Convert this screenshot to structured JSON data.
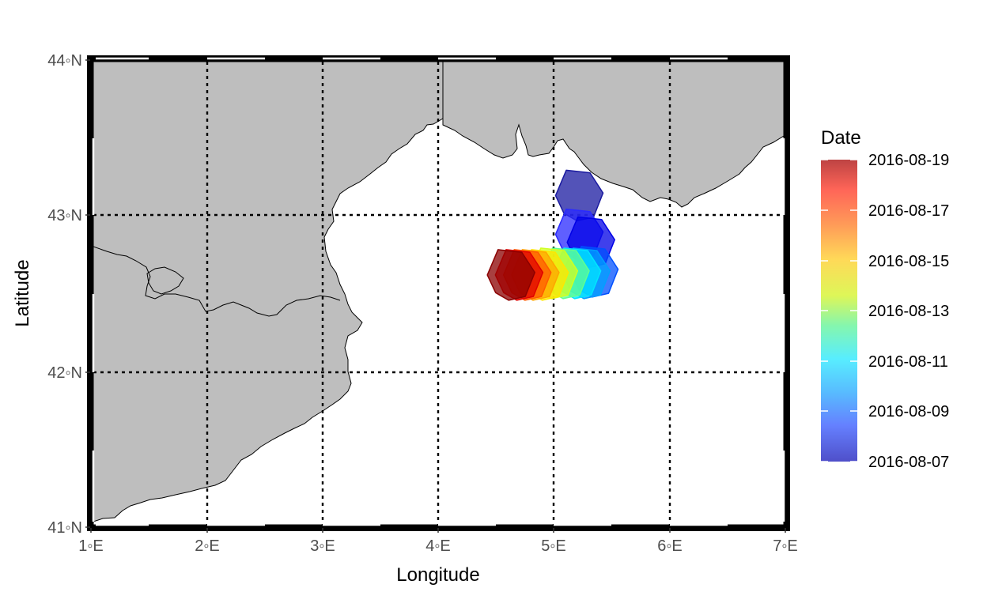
{
  "map": {
    "xlabel": "Longitude",
    "ylabel": "Latitude",
    "x_ticks": [
      "1◦E",
      "2◦E",
      "3◦E",
      "4◦E",
      "5◦E",
      "6◦E",
      "7◦E"
    ],
    "y_ticks": [
      "41◦N",
      "42◦N",
      "43◦N",
      "44◦N"
    ],
    "lon_range": [
      1,
      7
    ],
    "lat_range": [
      41,
      44
    ],
    "grid_lon": [
      2,
      3,
      4,
      5,
      6
    ],
    "grid_lat": [
      42,
      43
    ],
    "land_color": "#bebebe",
    "sea_color": "#ffffff",
    "grid_style": "dotted"
  },
  "legend": {
    "title": "Date",
    "placement": "right",
    "labels": [
      "2016-08-19",
      "2016-08-17",
      "2016-08-15",
      "2016-08-13",
      "2016-08-11",
      "2016-08-09",
      "2016-08-07"
    ],
    "colors_top_to_bottom": [
      "#b22222",
      "#ff4500",
      "#ffa500",
      "#ffff00",
      "#7fff7f",
      "#00ffff",
      "#1e90ff",
      "#0000ff",
      "#00008b"
    ]
  },
  "chart_data": {
    "type": "map",
    "xlabel": "Longitude",
    "ylabel": "Latitude",
    "xlim": [
      1,
      7
    ],
    "ylim": [
      41,
      44
    ],
    "series": [
      {
        "date": "2016-08-07",
        "center_lon": 5.22,
        "center_lat": 43.13,
        "color": "#1a1aa0"
      },
      {
        "date": "2016-08-08",
        "center_lon": 5.22,
        "center_lat": 42.88,
        "color": "#2a2aff"
      },
      {
        "date": "2016-08-09",
        "center_lon": 5.32,
        "center_lat": 42.83,
        "color": "#0000e6"
      },
      {
        "date": "2016-08-10",
        "center_lon": 5.35,
        "center_lat": 42.64,
        "color": "#0050ff"
      },
      {
        "date": "2016-08-11",
        "center_lon": 5.28,
        "center_lat": 42.63,
        "color": "#00a0ff"
      },
      {
        "date": "2016-08-12",
        "center_lon": 5.2,
        "center_lat": 42.63,
        "color": "#00e5ff"
      },
      {
        "date": "2016-08-13",
        "center_lon": 5.1,
        "center_lat": 42.63,
        "color": "#60ff90"
      },
      {
        "date": "2016-08-14",
        "center_lon": 5.0,
        "center_lat": 42.63,
        "color": "#d0ff20"
      },
      {
        "date": "2016-08-15",
        "center_lon": 4.92,
        "center_lat": 42.62,
        "color": "#ffe600"
      },
      {
        "date": "2016-08-16",
        "center_lon": 4.84,
        "center_lat": 42.62,
        "color": "#ffa500"
      },
      {
        "date": "2016-08-17",
        "center_lon": 4.77,
        "center_lat": 42.62,
        "color": "#ff5a00"
      },
      {
        "date": "2016-08-18",
        "center_lon": 4.7,
        "center_lat": 42.62,
        "color": "#e00000"
      },
      {
        "date": "2016-08-19",
        "center_lon": 4.63,
        "center_lat": 42.62,
        "color": "#8b0000"
      }
    ]
  }
}
